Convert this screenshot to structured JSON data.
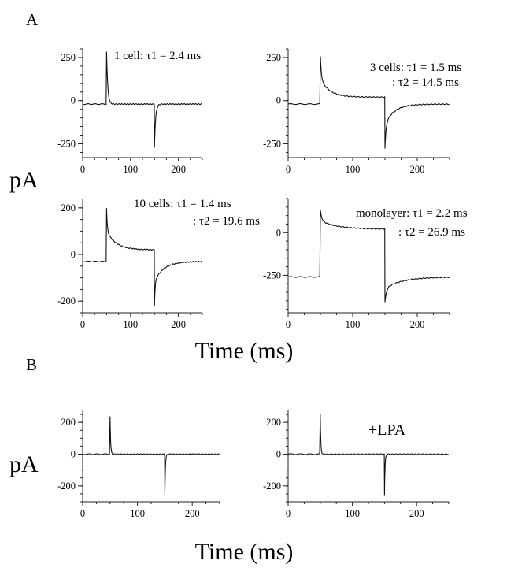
{
  "figure": {
    "panel_a_letter": "A",
    "panel_b_letter": "B",
    "y_axis_label": "pA",
    "x_axis_label": "Time (ms)"
  },
  "chart_data": [
    {
      "id": "a1",
      "type": "line",
      "annotation": [
        "1 cell: τ1 = 2.4 ms"
      ],
      "xlim": [
        0,
        250
      ],
      "ylim": [
        -330,
        300
      ],
      "x_ticks": [
        0,
        100,
        200
      ],
      "y_ticks": [
        250,
        0,
        -250
      ],
      "y_tick_labels": [
        "250",
        "0",
        "-250"
      ],
      "trace": {
        "baseline": -20,
        "step_on_ms": 50,
        "step_off_ms": 150,
        "on_peak": 285,
        "off_peak": -270,
        "plateau": -20,
        "tau1_ms": 2.4,
        "tau2_ms": null
      }
    },
    {
      "id": "a2",
      "type": "line",
      "annotation": [
        "3 cells: τ1 = 1.5 ms",
        ": τ2 = 14.5 ms"
      ],
      "xlim": [
        0,
        250
      ],
      "ylim": [
        -330,
        300
      ],
      "x_ticks": [
        0,
        100,
        200
      ],
      "y_ticks": [
        250,
        0,
        -250
      ],
      "y_tick_labels": [
        "250",
        "0",
        "-250"
      ],
      "trace": {
        "baseline": -20,
        "step_on_ms": 50,
        "step_off_ms": 150,
        "on_peak": 255,
        "off_peak": -280,
        "plateau": 20,
        "tau1_ms": 1.5,
        "tau2_ms": 14.5
      }
    },
    {
      "id": "a3",
      "type": "line",
      "annotation": [
        "10 cells: τ1 = 1.4 ms",
        ": τ2 = 19.6 ms"
      ],
      "xlim": [
        0,
        250
      ],
      "ylim": [
        -250,
        240
      ],
      "x_ticks": [
        0,
        100,
        200
      ],
      "y_ticks": [
        200,
        0,
        -200
      ],
      "y_tick_labels": [
        "200",
        "0",
        "-200"
      ],
      "trace": {
        "baseline": -30,
        "step_on_ms": 50,
        "step_off_ms": 150,
        "on_peak": 200,
        "off_peak": -220,
        "plateau": 20,
        "tau1_ms": 1.4,
        "tau2_ms": 19.6
      }
    },
    {
      "id": "a4",
      "type": "line",
      "annotation": [
        "monolayer: τ1 = 2.2 ms",
        ": τ2 = 26.9 ms"
      ],
      "xlim": [
        0,
        250
      ],
      "ylim": [
        -470,
        200
      ],
      "x_ticks": [
        0,
        100,
        200
      ],
      "y_ticks": [
        0,
        -250
      ],
      "y_tick_labels": [
        "0",
        "-250"
      ],
      "trace": {
        "baseline": -260,
        "step_on_ms": 50,
        "step_off_ms": 150,
        "on_peak": 130,
        "off_peak": -410,
        "plateau": 20,
        "tau1_ms": 2.2,
        "tau2_ms": 26.9
      }
    },
    {
      "id": "b1",
      "type": "line",
      "annotation": [],
      "xlim": [
        0,
        250
      ],
      "ylim": [
        -300,
        280
      ],
      "x_ticks": [
        0,
        100,
        200
      ],
      "y_ticks": [
        200,
        0,
        -200
      ],
      "y_tick_labels": [
        "200",
        "0",
        "-200"
      ],
      "trace": {
        "baseline": 0,
        "step_on_ms": 50,
        "step_off_ms": 150,
        "on_peak": 240,
        "off_peak": -250,
        "plateau": 0,
        "tau1_ms": 1.0,
        "tau2_ms": null
      }
    },
    {
      "id": "b2",
      "type": "line",
      "annotation": [
        "+LPA"
      ],
      "xlim": [
        0,
        250
      ],
      "ylim": [
        -300,
        280
      ],
      "x_ticks": [
        0,
        100,
        200
      ],
      "y_ticks": [
        200,
        0,
        -200
      ],
      "y_tick_labels": [
        "200",
        "0",
        "-200"
      ],
      "trace": {
        "baseline": 0,
        "step_on_ms": 50,
        "step_off_ms": 150,
        "on_peak": 250,
        "off_peak": -260,
        "plateau": 0,
        "tau1_ms": 0.8,
        "tau2_ms": null
      }
    }
  ]
}
